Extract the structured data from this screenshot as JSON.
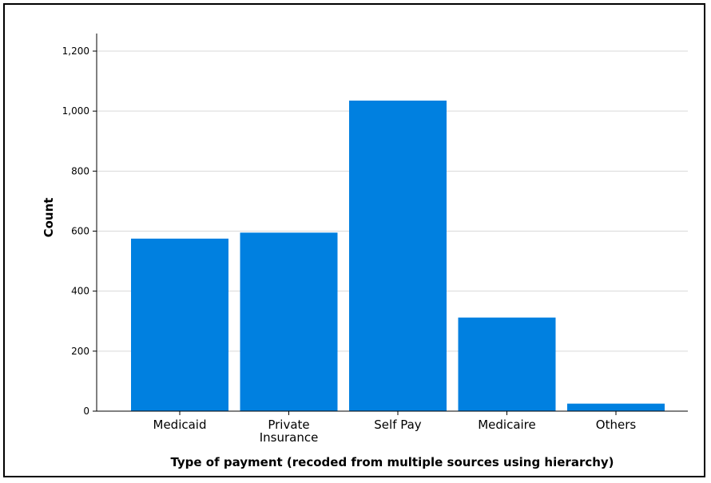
{
  "chart_data": {
    "type": "bar",
    "categories": [
      "Medicaid",
      "Private\nInsurance",
      "Self Pay",
      "Medicaire",
      "Others"
    ],
    "values": [
      575,
      595,
      1035,
      312,
      25
    ],
    "title": "",
    "xlabel": "Type of payment (recoded from multiple sources using hierarchy)",
    "ylabel": "Count",
    "ylim": [
      0,
      1200
    ],
    "yticks": [
      0,
      200,
      400,
      600,
      800,
      1000,
      1200
    ],
    "ytick_labels": [
      "0",
      "200",
      "400",
      "600",
      "800",
      "1,000",
      "1,200"
    ],
    "grid": true,
    "bar_color": "#0080e0"
  }
}
